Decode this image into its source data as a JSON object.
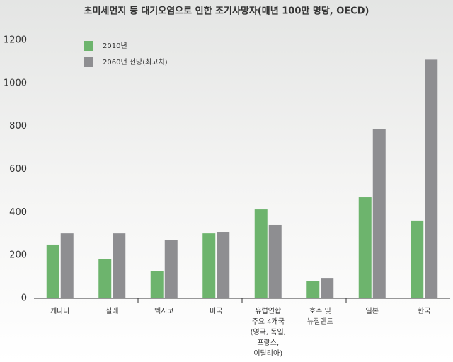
{
  "chart_data": {
    "type": "bar",
    "title": "초미세먼지 등 대기오염으로 인한 조기사망자(매년 100만 명당, OECD)",
    "categories": [
      [
        "캐나다"
      ],
      [
        "칠레"
      ],
      [
        "멕시코"
      ],
      [
        "미국"
      ],
      [
        "유럽연합",
        "주요 4개국",
        "(영국, 독일,",
        "프랑스,",
        "이탈리아)"
      ],
      [
        "호주 및",
        "뉴질랜드"
      ],
      [
        "일본"
      ],
      [
        "한국"
      ]
    ],
    "series": [
      {
        "name": "2010년",
        "color": "#6db46d",
        "values": [
          250,
          181,
          125,
          302,
          414,
          79,
          470,
          362
        ]
      },
      {
        "name": "2060년 전망(최고치)",
        "color": "#8e8e91",
        "values": [
          302,
          302,
          270,
          309,
          342,
          95,
          786,
          1110
        ]
      }
    ],
    "ylim": [
      0,
      1200
    ],
    "yticks": [
      0,
      200,
      400,
      600,
      800,
      1000,
      1200
    ],
    "grid": false
  }
}
